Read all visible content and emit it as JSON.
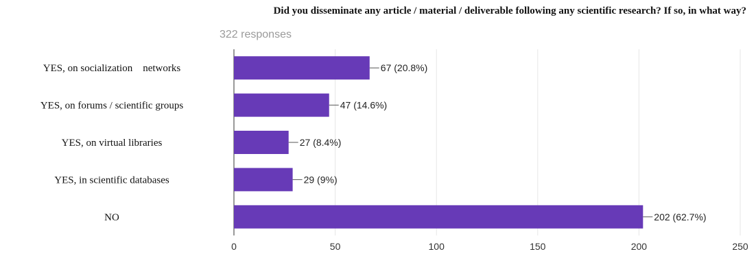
{
  "chart_data": {
    "type": "bar",
    "orientation": "horizontal",
    "title": "Did you disseminate any article / material / deliverable following any scientific research? If so, in what way?",
    "subtitle": "322 responses",
    "categories": [
      "YES, on socialization    networks",
      "YES, on forums / scientific groups",
      "YES, on virtual libraries",
      "YES, in scientific databases",
      "NO"
    ],
    "values": [
      67,
      47,
      27,
      29,
      202
    ],
    "value_labels": [
      "67 (20.8%)",
      "47 (14.6%)",
      "27 (8.4%)",
      "29 (9%)",
      "202 (62.7%)"
    ],
    "xlim": [
      0,
      250
    ],
    "xticks": [
      0,
      50,
      100,
      150,
      200,
      250
    ],
    "grid": true,
    "legend": "none",
    "bar_color": "#673ab7",
    "xlabel": "",
    "ylabel": ""
  }
}
